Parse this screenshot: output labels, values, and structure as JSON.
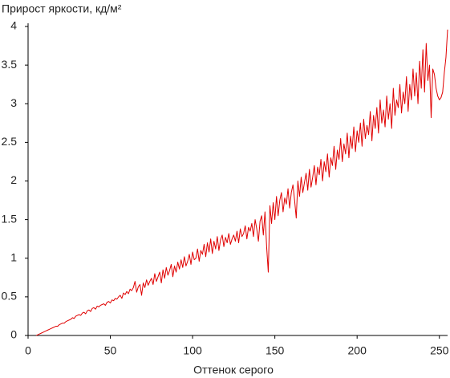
{
  "chart_data": {
    "type": "line",
    "title": "Прирост яркости, кд/м²",
    "x_label": "Оттенок серого",
    "x": [
      5,
      6,
      7,
      8,
      9,
      10,
      11,
      12,
      13,
      14,
      15,
      16,
      17,
      18,
      19,
      20,
      21,
      22,
      23,
      24,
      25,
      26,
      27,
      28,
      29,
      30,
      31,
      32,
      33,
      34,
      35,
      36,
      37,
      38,
      39,
      40,
      41,
      42,
      43,
      44,
      45,
      46,
      47,
      48,
      49,
      50,
      51,
      52,
      53,
      54,
      55,
      56,
      57,
      58,
      59,
      60,
      61,
      62,
      63,
      64,
      65,
      66,
      67,
      68,
      69,
      70,
      71,
      72,
      73,
      74,
      75,
      76,
      77,
      78,
      79,
      80,
      81,
      82,
      83,
      84,
      85,
      86,
      87,
      88,
      89,
      90,
      91,
      92,
      93,
      94,
      95,
      96,
      97,
      98,
      99,
      100,
      101,
      102,
      103,
      104,
      105,
      106,
      107,
      108,
      109,
      110,
      111,
      112,
      113,
      114,
      115,
      116,
      117,
      118,
      119,
      120,
      121,
      122,
      123,
      124,
      125,
      126,
      127,
      128,
      129,
      130,
      131,
      132,
      133,
      134,
      135,
      136,
      137,
      138,
      139,
      140,
      141,
      142,
      143,
      144,
      145,
      146,
      147,
      148,
      149,
      150,
      151,
      152,
      153,
      154,
      155,
      156,
      157,
      158,
      159,
      160,
      161,
      162,
      163,
      164,
      165,
      166,
      167,
      168,
      169,
      170,
      171,
      172,
      173,
      174,
      175,
      176,
      177,
      178,
      179,
      180,
      181,
      182,
      183,
      184,
      185,
      186,
      187,
      188,
      189,
      190,
      191,
      192,
      193,
      194,
      195,
      196,
      197,
      198,
      199,
      200,
      201,
      202,
      203,
      204,
      205,
      206,
      207,
      208,
      209,
      210,
      211,
      212,
      213,
      214,
      215,
      216,
      217,
      218,
      219,
      220,
      221,
      222,
      223,
      224,
      225,
      226,
      227,
      228,
      229,
      230,
      231,
      232,
      233,
      234,
      235,
      236,
      237,
      238,
      239,
      240,
      241,
      242,
      243,
      244,
      245,
      246,
      247,
      248,
      249,
      250,
      251,
      252,
      253,
      254,
      255
    ],
    "series": [
      {
        "color": "#e00000",
        "values": [
          0,
          0.01,
          0.02,
          0.03,
          0.04,
          0.05,
          0.06,
          0.07,
          0.08,
          0.09,
          0.1,
          0.11,
          0.12,
          0.12,
          0.14,
          0.15,
          0.16,
          0.16,
          0.18,
          0.19,
          0.2,
          0.21,
          0.23,
          0.22,
          0.25,
          0.26,
          0.27,
          0.26,
          0.29,
          0.3,
          0.28,
          0.32,
          0.33,
          0.31,
          0.35,
          0.36,
          0.34,
          0.38,
          0.37,
          0.39,
          0.4,
          0.41,
          0.39,
          0.43,
          0.44,
          0.42,
          0.46,
          0.45,
          0.48,
          0.47,
          0.5,
          0.52,
          0.48,
          0.55,
          0.53,
          0.57,
          0.54,
          0.6,
          0.58,
          0.62,
          0.7,
          0.56,
          0.63,
          0.66,
          0.52,
          0.68,
          0.62,
          0.72,
          0.65,
          0.7,
          0.74,
          0.66,
          0.8,
          0.7,
          0.76,
          0.82,
          0.68,
          0.85,
          0.74,
          0.88,
          0.78,
          0.84,
          0.92,
          0.76,
          0.9,
          0.82,
          0.95,
          0.86,
          0.98,
          0.88,
          1.02,
          0.9,
          0.96,
          1.05,
          0.92,
          1.08,
          0.98,
          1.0,
          1.12,
          0.96,
          1.1,
          1.05,
          1.18,
          1.02,
          1.2,
          1.08,
          1.25,
          1.06,
          1.22,
          1.12,
          1.28,
          1.1,
          1.24,
          1.3,
          1.15,
          1.27,
          1.2,
          1.32,
          1.18,
          1.25,
          1.3,
          1.22,
          1.35,
          1.2,
          1.38,
          1.28,
          1.32,
          1.42,
          1.25,
          1.4,
          1.35,
          1.45,
          1.28,
          1.5,
          1.38,
          1.22,
          1.48,
          1.55,
          1.3,
          1.6,
          1.15,
          0.82,
          1.68,
          1.45,
          1.72,
          1.5,
          1.8,
          1.55,
          1.75,
          1.85,
          1.6,
          1.78,
          1.7,
          1.9,
          1.65,
          1.85,
          1.95,
          1.75,
          1.52,
          2.0,
          1.8,
          2.05,
          1.85,
          1.98,
          2.1,
          1.88,
          2.15,
          1.92,
          2.05,
          2.2,
          1.95,
          2.18,
          2.08,
          2.28,
          2.0,
          2.25,
          2.12,
          2.35,
          2.05,
          2.3,
          2.2,
          2.45,
          2.15,
          2.4,
          2.28,
          2.55,
          2.25,
          2.48,
          2.35,
          2.62,
          2.3,
          2.58,
          2.42,
          2.7,
          2.38,
          2.65,
          2.5,
          2.75,
          2.45,
          2.8,
          2.55,
          2.72,
          2.6,
          2.9,
          2.52,
          2.85,
          2.68,
          2.95,
          2.62,
          3.05,
          2.75,
          2.92,
          2.7,
          3.1,
          2.8,
          3.0,
          2.68,
          3.2,
          2.85,
          3.05,
          2.95,
          3.25,
          2.88,
          3.15,
          3.0,
          3.35,
          2.9,
          3.25,
          3.05,
          3.45,
          3.1,
          3.4,
          3.0,
          3.55,
          3.2,
          3.7,
          3.15,
          3.78,
          3.3,
          3.5,
          2.82,
          3.45,
          3.38,
          3.2,
          3.1,
          3.05,
          3.08,
          3.15,
          3.4,
          3.6,
          3.96
        ]
      }
    ],
    "xlim": [
      0,
      255
    ],
    "ylim": [
      0,
      4
    ],
    "xticks": [
      0,
      50,
      100,
      150,
      200,
      250
    ],
    "yticks": [
      0,
      0.5,
      1,
      1.5,
      2,
      2.5,
      3,
      3.5,
      4
    ],
    "grid": false
  }
}
